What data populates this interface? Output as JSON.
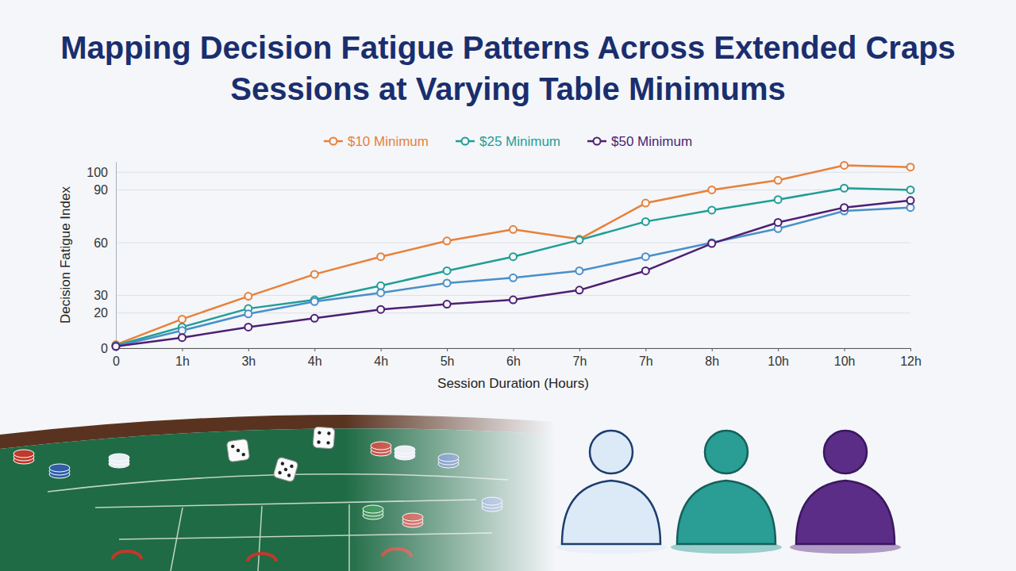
{
  "chart_data": {
    "type": "line",
    "title": "Mapping Decision Fatigue Patterns Across Extended Craps Sessions at Varying Table Minimums",
    "x_label": "Session Duration (Hours)",
    "y_label": "Decision Fatigue Index",
    "categories": [
      "0",
      "1h",
      "3h",
      "4h",
      "4h",
      "5h",
      "6h",
      "7h",
      "7h",
      "8h",
      "10h",
      "10h",
      "12h"
    ],
    "series": [
      {
        "name": "$10 Minimum",
        "color": "#e8803a",
        "values": [
          2,
          16.5,
          29.5,
          42,
          52,
          61,
          67.5,
          62,
          82.5,
          90,
          95.5,
          104,
          103
        ]
      },
      {
        "name": "$25 Minimum",
        "color": "#1f9e96",
        "values": [
          1.5,
          12,
          22.5,
          27.5,
          35.5,
          44,
          52,
          61.5,
          72,
          78.5,
          84.5,
          91,
          90
        ]
      },
      {
        "color": "#4a8fc9",
        "values": [
          1,
          10,
          19.5,
          26.5,
          31.5,
          37,
          40,
          44,
          52,
          60,
          68,
          78,
          80
        ]
      },
      {
        "name": "$50 Minimum",
        "color": "#4e1f73",
        "values": [
          1,
          6,
          12,
          17,
          22,
          25,
          27.5,
          33,
          44,
          59.5,
          71.5,
          80,
          84
        ]
      }
    ],
    "ylim": [
      0,
      106
    ],
    "yticks": [
      0,
      20,
      30,
      60,
      90,
      100
    ],
    "grid": true,
    "legend": "top",
    "marker": "circle"
  }
}
